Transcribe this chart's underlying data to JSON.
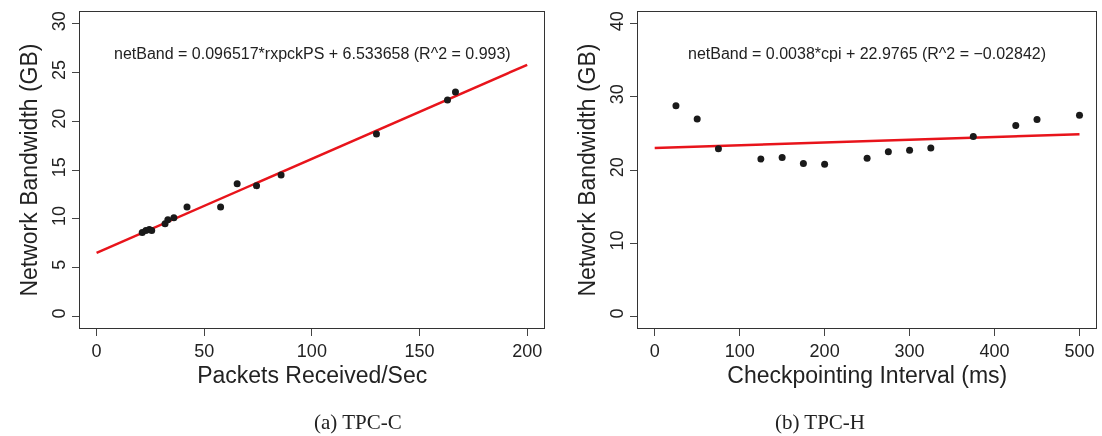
{
  "chart_data": [
    {
      "type": "scatter",
      "title": "(a) TPC-C",
      "xlabel": "Packets Received/Sec",
      "ylabel": "Network Bandwidth (GB)",
      "annotations": [
        "netBand = 0.096517*rxpckPS + 6.533658 (R^2 = 0.993)"
      ],
      "xlim": [
        -7.7,
        208
      ],
      "ylim": [
        -1.2,
        31.2
      ],
      "xticks": [
        0,
        50,
        100,
        150,
        200
      ],
      "yticks": [
        0,
        5,
        10,
        15,
        20,
        25,
        30
      ],
      "series": [
        {
          "color": "#1a1a1a",
          "marker": "circle",
          "x": [
            21.2,
            22.9,
            24.5,
            25.6,
            31.8,
            33.1,
            35.9,
            42,
            57.6,
            65.3,
            74.3,
            85.7,
            130,
            163,
            166.7
          ],
          "values": [
            8.6,
            8.8,
            8.9,
            8.8,
            9.5,
            9.9,
            10.1,
            11.2,
            11.2,
            13.6,
            13.4,
            14.5,
            18.7,
            22.2,
            23.0
          ]
        },
        {
          "type": "line",
          "color": "#e8141b",
          "marker": "none",
          "line_style": "solid",
          "x": [
            0,
            200
          ],
          "values": [
            6.5,
            25.8
          ]
        }
      ]
    },
    {
      "type": "scatter",
      "title": "(b) TPC-H",
      "xlabel": "Checkpointing Interval (ms)",
      "ylabel": "Network Bandwidth (GB)",
      "annotations": [
        "netBand = 0.0038*cpi + 22.9765 (R^2 = −0.02842)"
      ],
      "xlim": [
        -19.6,
        520
      ],
      "ylim": [
        -1.6,
        41.6
      ],
      "xticks": [
        0,
        100,
        200,
        300,
        400,
        500
      ],
      "yticks": [
        0,
        10,
        20,
        30,
        40
      ],
      "series": [
        {
          "color": "#1a1a1a",
          "marker": "circle",
          "x": [
            25,
            50,
            75,
            125,
            150,
            175,
            200,
            250,
            275,
            300,
            325,
            375,
            425,
            450,
            500
          ],
          "values": [
            28.8,
            27.0,
            22.9,
            21.5,
            21.7,
            20.9,
            20.8,
            21.6,
            22.5,
            22.7,
            23.0,
            24.6,
            26.1,
            26.9,
            27.5
          ]
        },
        {
          "type": "line",
          "color": "#e8141b",
          "marker": "none",
          "line_style": "solid",
          "x": [
            0,
            500
          ],
          "values": [
            23.0,
            24.9
          ]
        }
      ]
    }
  ]
}
